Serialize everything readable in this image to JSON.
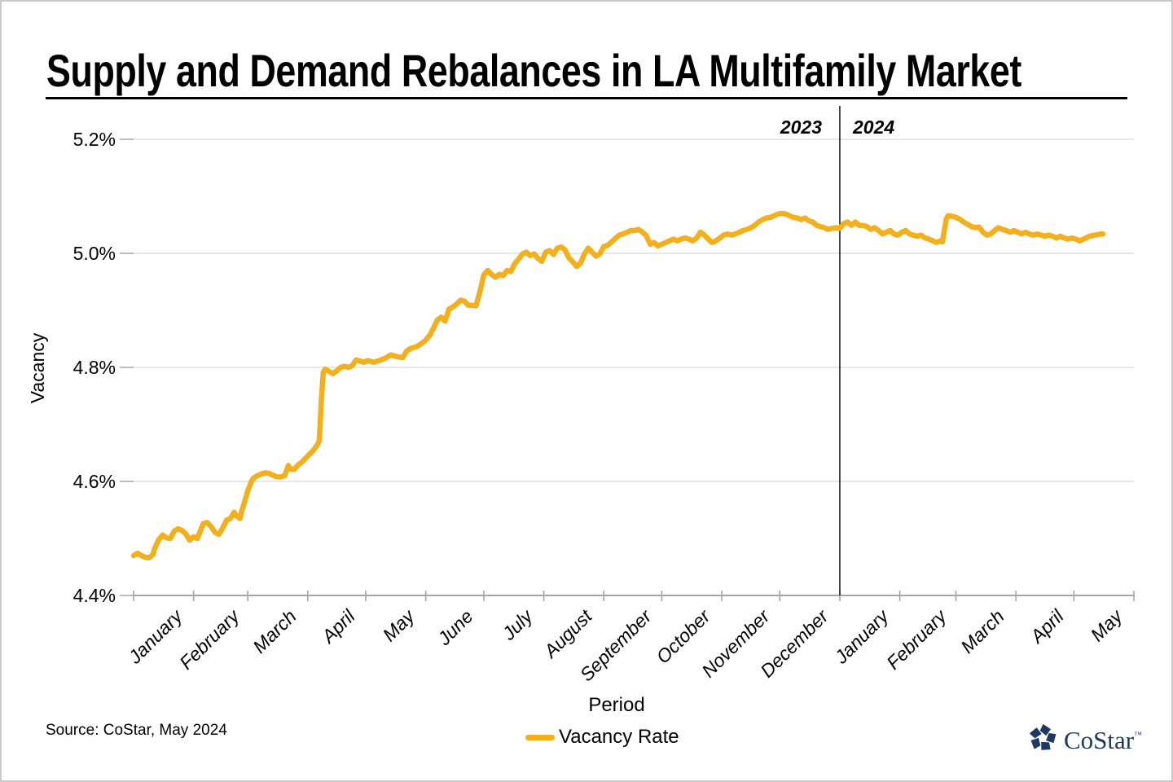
{
  "source_note": "Source: CoStar, May 2024",
  "branding": {
    "text": "CoStar",
    "tm": "™",
    "color": "#1F3864"
  },
  "chart_data": {
    "type": "line",
    "title": "Supply and Demand Rebalances in LA Multifamily Market",
    "xlabel": "Period",
    "ylabel": "Vacancy",
    "ylim": [
      4.4,
      5.2
    ],
    "grid": true,
    "grid_color": "#d9d9d9",
    "axis_color": "#a6a6a6",
    "legend_position": "bottom",
    "y_ticks": [
      {
        "label": "5.2%",
        "value": 5.2
      },
      {
        "label": "5.0%",
        "value": 5.0
      },
      {
        "label": "4.8%",
        "value": 4.8
      },
      {
        "label": "4.6%",
        "value": 4.6
      },
      {
        "label": "4.4%",
        "value": 4.4
      }
    ],
    "total_days": 517,
    "x_months": [
      {
        "label": "January",
        "start_day": 0
      },
      {
        "label": "February",
        "start_day": 31
      },
      {
        "label": "March",
        "start_day": 59
      },
      {
        "label": "April",
        "start_day": 90
      },
      {
        "label": "May",
        "start_day": 120
      },
      {
        "label": "June",
        "start_day": 151
      },
      {
        "label": "July",
        "start_day": 181
      },
      {
        "label": "August",
        "start_day": 212
      },
      {
        "label": "September",
        "start_day": 243
      },
      {
        "label": "October",
        "start_day": 273
      },
      {
        "label": "November",
        "start_day": 304
      },
      {
        "label": "December",
        "start_day": 334
      },
      {
        "label": "January",
        "start_day": 365
      },
      {
        "label": "February",
        "start_day": 396
      },
      {
        "label": "March",
        "start_day": 425
      },
      {
        "label": "April",
        "start_day": 456
      },
      {
        "label": "May",
        "start_day": 486
      }
    ],
    "year_divider": {
      "day": 365,
      "left_label": "2023",
      "right_label": "2024",
      "line_color": "#000000"
    },
    "series": [
      {
        "name": "Vacancy Rate",
        "color": "#F2B01E",
        "points": [
          [
            0,
            4.47
          ],
          [
            2,
            4.474
          ],
          [
            4,
            4.47
          ],
          [
            6,
            4.467
          ],
          [
            8,
            4.466
          ],
          [
            10,
            4.472
          ],
          [
            11,
            4.483
          ],
          [
            13,
            4.498
          ],
          [
            15,
            4.506
          ],
          [
            17,
            4.501
          ],
          [
            19,
            4.5
          ],
          [
            21,
            4.513
          ],
          [
            23,
            4.517
          ],
          [
            25,
            4.514
          ],
          [
            27,
            4.508
          ],
          [
            29,
            4.497
          ],
          [
            31,
            4.503
          ],
          [
            33,
            4.5
          ],
          [
            35,
            4.517
          ],
          [
            36,
            4.526
          ],
          [
            38,
            4.528
          ],
          [
            40,
            4.521
          ],
          [
            42,
            4.511
          ],
          [
            44,
            4.507
          ],
          [
            46,
            4.518
          ],
          [
            48,
            4.532
          ],
          [
            50,
            4.535
          ],
          [
            52,
            4.546
          ],
          [
            53,
            4.54
          ],
          [
            55,
            4.535
          ],
          [
            56,
            4.549
          ],
          [
            57,
            4.56
          ],
          [
            58,
            4.572
          ],
          [
            59,
            4.583
          ],
          [
            60,
            4.592
          ],
          [
            61,
            4.601
          ],
          [
            62,
            4.606
          ],
          [
            64,
            4.61
          ],
          [
            66,
            4.613
          ],
          [
            68,
            4.615
          ],
          [
            70,
            4.614
          ],
          [
            72,
            4.611
          ],
          [
            74,
            4.608
          ],
          [
            76,
            4.608
          ],
          [
            78,
            4.61
          ],
          [
            79,
            4.618
          ],
          [
            80,
            4.628
          ],
          [
            81,
            4.622
          ],
          [
            83,
            4.621
          ],
          [
            85,
            4.629
          ],
          [
            87,
            4.634
          ],
          [
            89,
            4.641
          ],
          [
            91,
            4.648
          ],
          [
            93,
            4.655
          ],
          [
            95,
            4.664
          ],
          [
            96,
            4.672
          ],
          [
            97,
            4.74
          ],
          [
            98,
            4.791
          ],
          [
            99,
            4.797
          ],
          [
            101,
            4.793
          ],
          [
            103,
            4.789
          ],
          [
            105,
            4.794
          ],
          [
            107,
            4.8
          ],
          [
            109,
            4.802
          ],
          [
            111,
            4.8
          ],
          [
            113,
            4.803
          ],
          [
            115,
            4.813
          ],
          [
            117,
            4.811
          ],
          [
            119,
            4.809
          ],
          [
            121,
            4.812
          ],
          [
            124,
            4.809
          ],
          [
            127,
            4.812
          ],
          [
            130,
            4.816
          ],
          [
            133,
            4.822
          ],
          [
            136,
            4.819
          ],
          [
            139,
            4.817
          ],
          [
            141,
            4.828
          ],
          [
            143,
            4.833
          ],
          [
            146,
            4.836
          ],
          [
            149,
            4.842
          ],
          [
            151,
            4.848
          ],
          [
            153,
            4.856
          ],
          [
            155,
            4.869
          ],
          [
            157,
            4.883
          ],
          [
            159,
            4.888
          ],
          [
            161,
            4.881
          ],
          [
            163,
            4.902
          ],
          [
            165,
            4.906
          ],
          [
            167,
            4.911
          ],
          [
            169,
            4.918
          ],
          [
            171,
            4.916
          ],
          [
            173,
            4.909
          ],
          [
            175,
            4.909
          ],
          [
            177,
            4.908
          ],
          [
            179,
            4.933
          ],
          [
            181,
            4.962
          ],
          [
            183,
            4.97
          ],
          [
            185,
            4.963
          ],
          [
            187,
            4.958
          ],
          [
            189,
            4.963
          ],
          [
            191,
            4.961
          ],
          [
            193,
            4.97
          ],
          [
            195,
            4.968
          ],
          [
            197,
            4.982
          ],
          [
            199,
            4.99
          ],
          [
            201,
            4.999
          ],
          [
            203,
            5.002
          ],
          [
            205,
            4.996
          ],
          [
            207,
            4.999
          ],
          [
            209,
            4.991
          ],
          [
            211,
            4.986
          ],
          [
            213,
            5.002
          ],
          [
            215,
            5.005
          ],
          [
            217,
            4.998
          ],
          [
            219,
            5.009
          ],
          [
            221,
            5.011
          ],
          [
            223,
            5.006
          ],
          [
            225,
            4.992
          ],
          [
            227,
            4.985
          ],
          [
            229,
            4.977
          ],
          [
            231,
            4.983
          ],
          [
            233,
            4.999
          ],
          [
            235,
            5.009
          ],
          [
            237,
            5.002
          ],
          [
            239,
            4.995
          ],
          [
            241,
            4.999
          ],
          [
            243,
            5.012
          ],
          [
            245,
            5.014
          ],
          [
            247,
            5.02
          ],
          [
            249,
            5.026
          ],
          [
            251,
            5.032
          ],
          [
            253,
            5.034
          ],
          [
            255,
            5.037
          ],
          [
            257,
            5.04
          ],
          [
            259,
            5.04
          ],
          [
            261,
            5.042
          ],
          [
            263,
            5.037
          ],
          [
            265,
            5.031
          ],
          [
            267,
            5.016
          ],
          [
            269,
            5.019
          ],
          [
            271,
            5.013
          ],
          [
            273,
            5.016
          ],
          [
            275,
            5.019
          ],
          [
            277,
            5.022
          ],
          [
            279,
            5.025
          ],
          [
            281,
            5.022
          ],
          [
            283,
            5.025
          ],
          [
            285,
            5.027
          ],
          [
            287,
            5.025
          ],
          [
            289,
            5.022
          ],
          [
            291,
            5.027
          ],
          [
            293,
            5.037
          ],
          [
            295,
            5.032
          ],
          [
            297,
            5.025
          ],
          [
            299,
            5.019
          ],
          [
            301,
            5.022
          ],
          [
            303,
            5.027
          ],
          [
            305,
            5.032
          ],
          [
            307,
            5.034
          ],
          [
            309,
            5.032
          ],
          [
            311,
            5.034
          ],
          [
            313,
            5.037
          ],
          [
            315,
            5.04
          ],
          [
            317,
            5.042
          ],
          [
            319,
            5.045
          ],
          [
            321,
            5.049
          ],
          [
            323,
            5.055
          ],
          [
            325,
            5.059
          ],
          [
            327,
            5.062
          ],
          [
            329,
            5.063
          ],
          [
            331,
            5.066
          ],
          [
            333,
            5.069
          ],
          [
            335,
            5.07
          ],
          [
            337,
            5.069
          ],
          [
            339,
            5.066
          ],
          [
            341,
            5.063
          ],
          [
            343,
            5.062
          ],
          [
            345,
            5.059
          ],
          [
            347,
            5.062
          ],
          [
            349,
            5.057
          ],
          [
            351,
            5.055
          ],
          [
            353,
            5.049
          ],
          [
            355,
            5.047
          ],
          [
            357,
            5.045
          ],
          [
            359,
            5.042
          ],
          [
            361,
            5.044
          ],
          [
            363,
            5.045
          ],
          [
            365,
            5.044
          ],
          [
            367,
            5.052
          ],
          [
            369,
            5.055
          ],
          [
            371,
            5.049
          ],
          [
            373,
            5.055
          ],
          [
            375,
            5.049
          ],
          [
            377,
            5.049
          ],
          [
            379,
            5.047
          ],
          [
            381,
            5.042
          ],
          [
            383,
            5.045
          ],
          [
            385,
            5.04
          ],
          [
            387,
            5.034
          ],
          [
            389,
            5.037
          ],
          [
            391,
            5.04
          ],
          [
            393,
            5.034
          ],
          [
            395,
            5.032
          ],
          [
            397,
            5.037
          ],
          [
            399,
            5.04
          ],
          [
            401,
            5.034
          ],
          [
            403,
            5.032
          ],
          [
            405,
            5.03
          ],
          [
            407,
            5.032
          ],
          [
            409,
            5.027
          ],
          [
            411,
            5.025
          ],
          [
            413,
            5.022
          ],
          [
            415,
            5.019
          ],
          [
            417,
            5.022
          ],
          [
            418,
            5.02
          ],
          [
            419,
            5.04
          ],
          [
            420,
            5.06
          ],
          [
            421,
            5.066
          ],
          [
            423,
            5.065
          ],
          [
            425,
            5.063
          ],
          [
            427,
            5.06
          ],
          [
            429,
            5.055
          ],
          [
            431,
            5.051
          ],
          [
            433,
            5.047
          ],
          [
            435,
            5.045
          ],
          [
            437,
            5.046
          ],
          [
            439,
            5.037
          ],
          [
            441,
            5.032
          ],
          [
            443,
            5.034
          ],
          [
            445,
            5.04
          ],
          [
            447,
            5.045
          ],
          [
            449,
            5.042
          ],
          [
            451,
            5.04
          ],
          [
            453,
            5.037
          ],
          [
            455,
            5.04
          ],
          [
            457,
            5.037
          ],
          [
            459,
            5.034
          ],
          [
            461,
            5.037
          ],
          [
            463,
            5.034
          ],
          [
            465,
            5.032
          ],
          [
            467,
            5.034
          ],
          [
            469,
            5.032
          ],
          [
            471,
            5.03
          ],
          [
            473,
            5.032
          ],
          [
            475,
            5.03
          ],
          [
            477,
            5.027
          ],
          [
            479,
            5.03
          ],
          [
            481,
            5.027
          ],
          [
            483,
            5.025
          ],
          [
            485,
            5.027
          ],
          [
            487,
            5.025
          ],
          [
            489,
            5.022
          ],
          [
            491,
            5.025
          ],
          [
            494,
            5.03
          ],
          [
            497,
            5.032
          ],
          [
            500,
            5.034
          ],
          [
            501,
            5.034
          ]
        ]
      }
    ]
  }
}
